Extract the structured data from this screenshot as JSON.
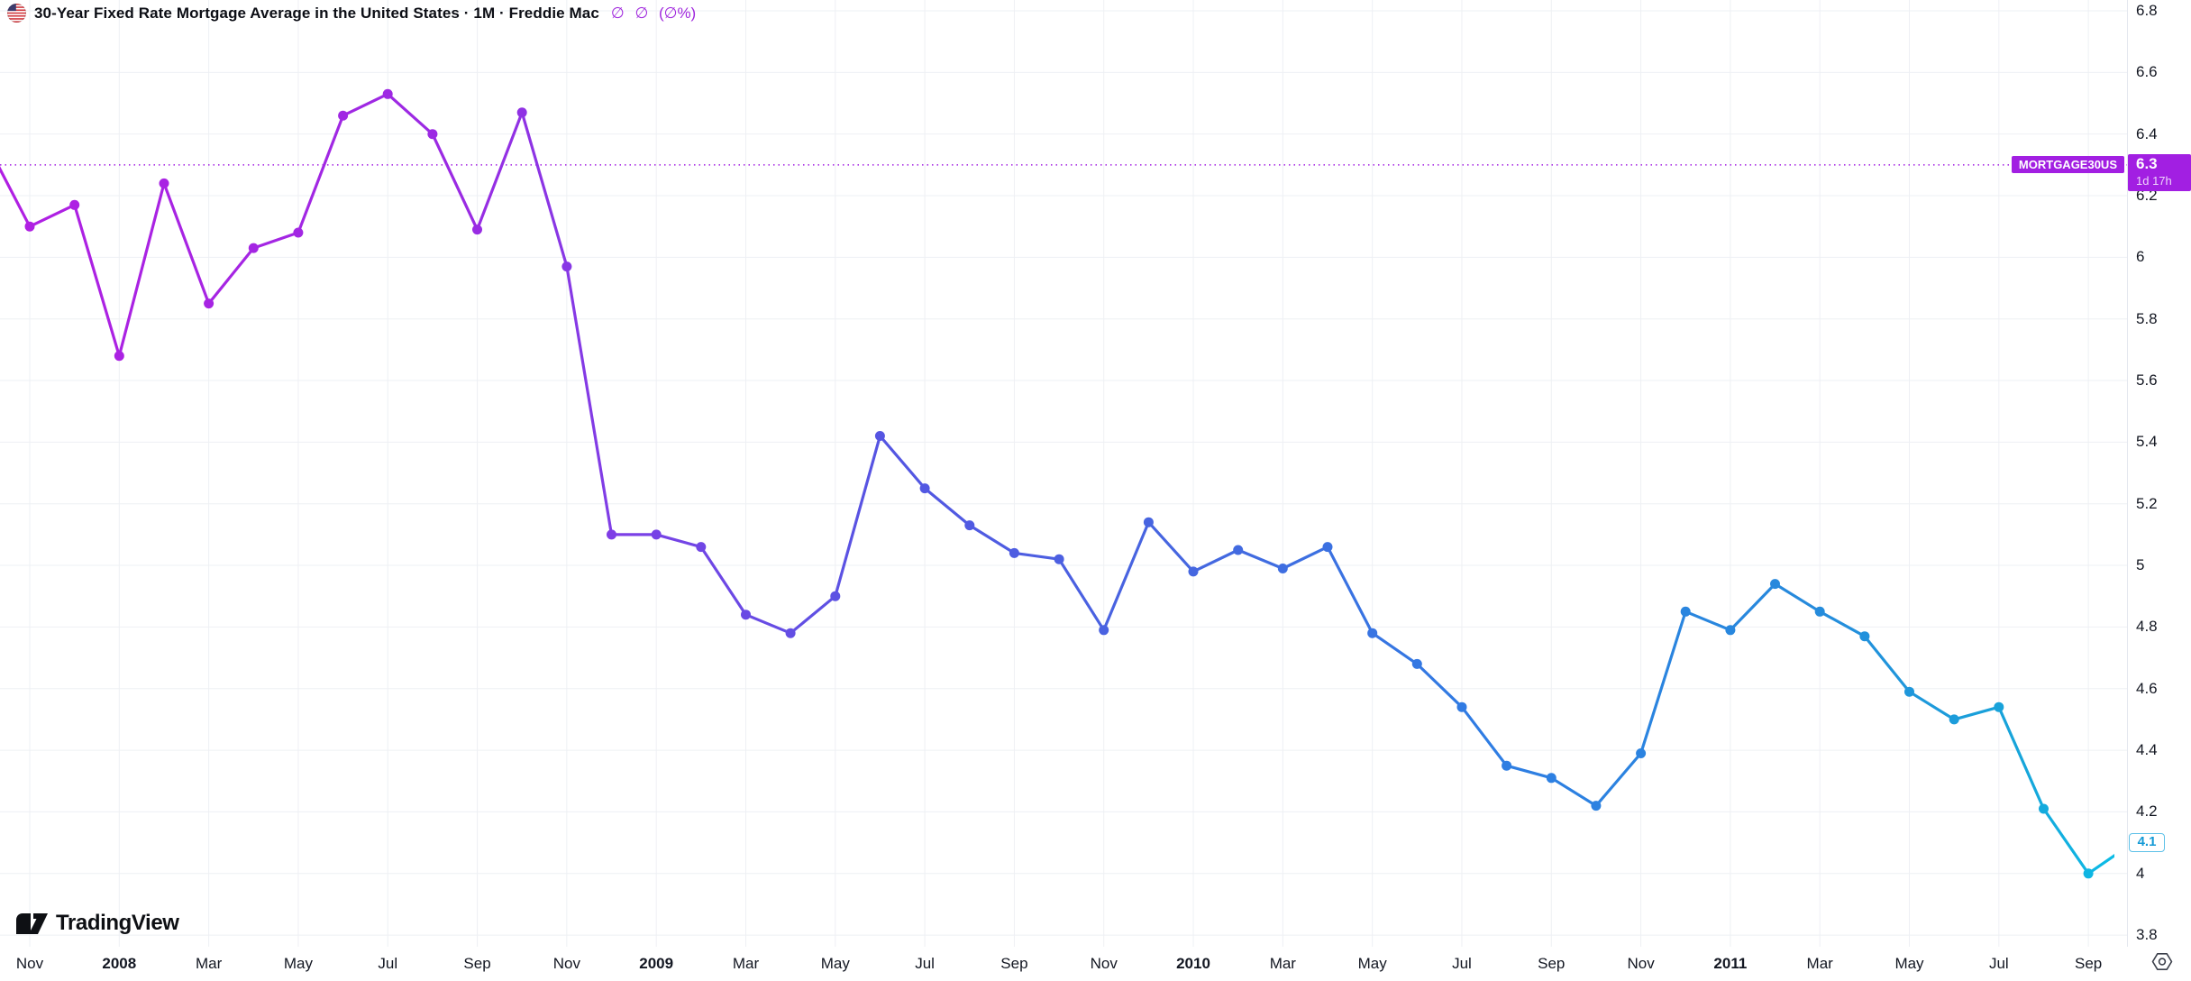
{
  "header": {
    "title": "30-Year Fixed Rate Mortgage Average in the United States · 1M · Freddie Mac",
    "change_values": "∅ ∅ (∅%)",
    "change_color": "#a028dd",
    "flag_icon": "us-flag"
  },
  "chart_data": {
    "type": "line",
    "title": "30-Year Fixed Rate Mortgage Average in the United States",
    "interval": "1M",
    "source": "Freddie Mac",
    "symbol": "MORTGAGE30US",
    "x": [
      "Nov 2007",
      "Dec 2007",
      "Jan 2008",
      "Feb 2008",
      "Mar 2008",
      "Apr 2008",
      "May 2008",
      "Jun 2008",
      "Jul 2008",
      "Aug 2008",
      "Sep 2008",
      "Oct 2008",
      "Nov 2008",
      "Dec 2008",
      "Jan 2009",
      "Feb 2009",
      "Mar 2009",
      "Apr 2009",
      "May 2009",
      "Jun 2009",
      "Jul 2009",
      "Aug 2009",
      "Sep 2009",
      "Oct 2009",
      "Nov 2009",
      "Dec 2009",
      "Jan 2010",
      "Feb 2010",
      "Mar 2010",
      "Apr 2010",
      "May 2010",
      "Jun 2010",
      "Jul 2010",
      "Aug 2010",
      "Sep 2010",
      "Oct 2010",
      "Nov 2010",
      "Dec 2010",
      "Jan 2011",
      "Feb 2011",
      "Mar 2011",
      "Apr 2011",
      "May 2011",
      "Jun 2011",
      "Jul 2011",
      "Aug 2011",
      "Sep 2011"
    ],
    "values": [
      6.1,
      6.17,
      5.68,
      6.24,
      5.85,
      6.03,
      6.08,
      6.46,
      6.53,
      6.4,
      6.09,
      6.47,
      5.97,
      5.1,
      5.1,
      5.06,
      4.84,
      4.78,
      4.9,
      5.42,
      5.25,
      5.13,
      5.04,
      5.02,
      4.79,
      5.14,
      4.98,
      5.05,
      4.99,
      5.06,
      4.78,
      4.68,
      4.54,
      4.35,
      4.31,
      4.22,
      4.39,
      4.85,
      4.79,
      4.94,
      4.85,
      4.77,
      4.59,
      4.5,
      4.54,
      4.21,
      4.0
    ],
    "lead_in_value": 6.38,
    "lead_out_value": 4.1,
    "current_price_line": 6.3,
    "ylim": [
      3.8,
      6.8
    ],
    "grid": true,
    "legend_position": "top-left",
    "y_ticks": [
      "6.8",
      "6.6",
      "6.4",
      "6.2",
      "6",
      "5.8",
      "5.6",
      "5.4",
      "5.2",
      "5",
      "4.8",
      "4.6",
      "4.4",
      "4.2",
      "4",
      "3.8"
    ],
    "x_ticks": [
      {
        "index": 0,
        "label": "Nov",
        "bold": false
      },
      {
        "index": 2,
        "label": "2008",
        "bold": true
      },
      {
        "index": 4,
        "label": "Mar",
        "bold": false
      },
      {
        "index": 6,
        "label": "May",
        "bold": false
      },
      {
        "index": 8,
        "label": "Jul",
        "bold": false
      },
      {
        "index": 10,
        "label": "Sep",
        "bold": false
      },
      {
        "index": 12,
        "label": "Nov",
        "bold": false
      },
      {
        "index": 14,
        "label": "2009",
        "bold": true
      },
      {
        "index": 16,
        "label": "Mar",
        "bold": false
      },
      {
        "index": 18,
        "label": "May",
        "bold": false
      },
      {
        "index": 20,
        "label": "Jul",
        "bold": false
      },
      {
        "index": 22,
        "label": "Sep",
        "bold": false
      },
      {
        "index": 24,
        "label": "Nov",
        "bold": false
      },
      {
        "index": 26,
        "label": "2010",
        "bold": true
      },
      {
        "index": 28,
        "label": "Mar",
        "bold": false
      },
      {
        "index": 30,
        "label": "May",
        "bold": false
      },
      {
        "index": 32,
        "label": "Jul",
        "bold": false
      },
      {
        "index": 34,
        "label": "Sep",
        "bold": false
      },
      {
        "index": 36,
        "label": "Nov",
        "bold": false
      },
      {
        "index": 38,
        "label": "2011",
        "bold": true
      },
      {
        "index": 40,
        "label": "Mar",
        "bold": false
      },
      {
        "index": 42,
        "label": "May",
        "bold": false
      },
      {
        "index": 44,
        "label": "Jul",
        "bold": false
      },
      {
        "index": 46,
        "label": "Sep",
        "bold": false
      }
    ],
    "line_gradient": [
      {
        "offset": "0%",
        "color": "#b11fe3"
      },
      {
        "offset": "22%",
        "color": "#9a2be3"
      },
      {
        "offset": "30%",
        "color": "#7a41e6"
      },
      {
        "offset": "42%",
        "color": "#5456e2"
      },
      {
        "offset": "57%",
        "color": "#4468e0"
      },
      {
        "offset": "70%",
        "color": "#2f7de3"
      },
      {
        "offset": "85%",
        "color": "#268adc"
      },
      {
        "offset": "95%",
        "color": "#17a5da"
      },
      {
        "offset": "100%",
        "color": "#0abfe8"
      }
    ]
  },
  "price_scale": {
    "symbol_badge": "MORTGAGE30US",
    "price_badge": "6.3",
    "countdown": "1d 17h",
    "badge_color": "#a21fe2",
    "last_value_badge": "4.1",
    "last_value_color": "#149ad6"
  },
  "footer": {
    "logo_text": "TradingView"
  },
  "colors": {
    "background": "#ffffff",
    "grid": "#eef0f4",
    "text": "#131722",
    "price_line": "#a21fe2"
  }
}
